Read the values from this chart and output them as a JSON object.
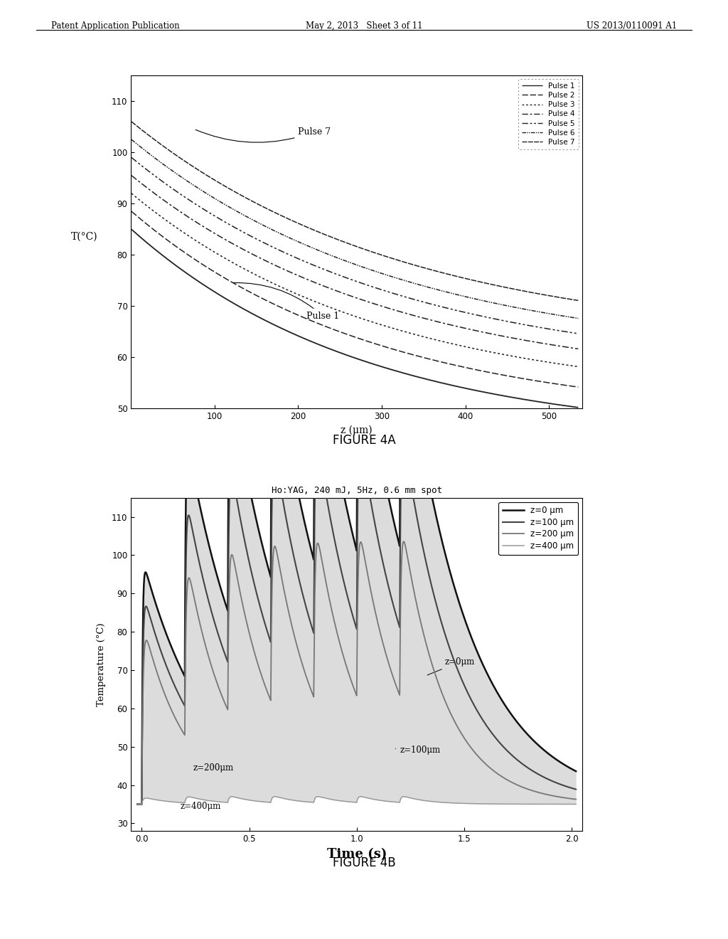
{
  "fig4a": {
    "ylabel": "T(°C)",
    "xlabel": "z (μm)",
    "xlim": [
      0,
      540
    ],
    "ylim": [
      50,
      115
    ],
    "xticks": [
      100,
      200,
      300,
      400,
      500
    ],
    "yticks": [
      50,
      60,
      70,
      80,
      90,
      100,
      110
    ],
    "pulse_labels": [
      "Pulse 1",
      "Pulse 2",
      "Pulse 3",
      "Pulse 4",
      "Pulse 5",
      "Pulse 6",
      "Pulse 7"
    ],
    "figure_label": "FIGURE 4A",
    "pulse_z0_temps": [
      85.0,
      88.5,
      92.0,
      95.5,
      99.0,
      102.5,
      106.0
    ],
    "pulse_z500_temps": [
      51.0,
      55.0,
      59.0,
      62.5,
      65.5,
      68.5,
      72.0
    ],
    "decay_scales": [
      280,
      290,
      300,
      310,
      315,
      320,
      325
    ]
  },
  "fig4b": {
    "title": "Ho:YAG, 240 mJ, 5Hz, 0.6 mm spot",
    "ylabel": "Temperature (°C)",
    "xlabel": "Time (s)",
    "figure_label": "FIGURE 4B",
    "xlim": [
      -0.05,
      2.05
    ],
    "ylim": [
      28,
      115
    ],
    "xticks": [
      0.0,
      0.5,
      1.0,
      1.5,
      2.0
    ],
    "yticks": [
      30,
      40,
      50,
      60,
      70,
      80,
      90,
      100,
      110
    ],
    "n_pulses": 7,
    "freq": 5,
    "z_legend_labels": [
      "z=0 μm",
      "z=100 μm",
      "z=200 μm",
      "z=400 μm"
    ],
    "base_temp": 35.0,
    "peak_temps": [
      100.0,
      92.0,
      84.0,
      37.0
    ],
    "decay_taus": [
      0.3,
      0.25,
      0.2,
      0.12
    ],
    "rise_taus": [
      0.004,
      0.005,
      0.006,
      0.007
    ],
    "colors": [
      "#111111",
      "#444444",
      "#777777",
      "#999999"
    ],
    "linewidths": [
      1.8,
      1.5,
      1.3,
      1.1
    ]
  },
  "header": {
    "left": "Patent Application Publication",
    "center": "May 2, 2013   Sheet 3 of 11",
    "right": "US 2013/0110091 A1"
  },
  "bg_color": "#ffffff",
  "text_color": "#000000"
}
